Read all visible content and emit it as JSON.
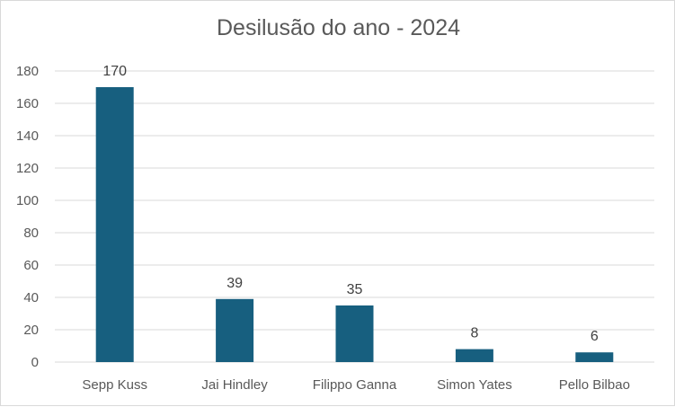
{
  "chart_data": {
    "type": "bar",
    "title": "Desilusão do ano - 2024",
    "categories": [
      "Sepp Kuss",
      "Jai Hindley",
      "Filippo Ganna",
      "Simon Yates",
      "Pello Bilbao"
    ],
    "values": [
      170,
      39,
      35,
      8,
      6
    ],
    "ylim": [
      0,
      180
    ],
    "yticks": [
      0,
      20,
      40,
      60,
      80,
      100,
      120,
      140,
      160,
      180
    ],
    "xlabel": "",
    "ylabel": "",
    "grid": true,
    "legend": "none",
    "bar_color": "#175f7f",
    "grid_color": "#d9d9d9",
    "text_color": "#595959"
  }
}
